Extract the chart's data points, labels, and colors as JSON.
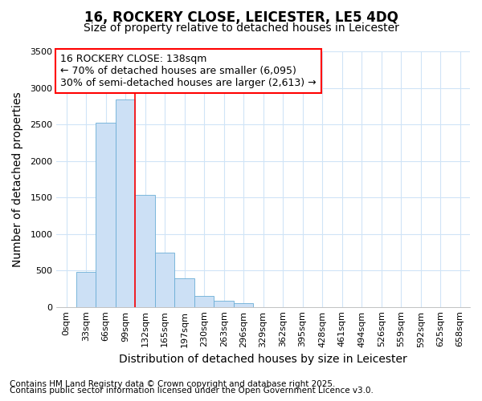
{
  "title_line1": "16, ROCKERY CLOSE, LEICESTER, LE5 4DQ",
  "title_line2": "Size of property relative to detached houses in Leicester",
  "xlabel": "Distribution of detached houses by size in Leicester",
  "ylabel": "Number of detached properties",
  "bar_labels": [
    "0sqm",
    "33sqm",
    "66sqm",
    "99sqm",
    "132sqm",
    "165sqm",
    "197sqm",
    "230sqm",
    "263sqm",
    "296sqm",
    "329sqm",
    "362sqm",
    "395sqm",
    "428sqm",
    "461sqm",
    "494sqm",
    "526sqm",
    "559sqm",
    "592sqm",
    "625sqm",
    "658sqm"
  ],
  "bar_heights": [
    0,
    480,
    2520,
    2840,
    1530,
    740,
    390,
    155,
    80,
    55,
    0,
    0,
    0,
    0,
    0,
    0,
    0,
    0,
    0,
    0,
    0
  ],
  "bar_color": "#cce0f5",
  "bar_edge_color": "#6baed6",
  "ylim": [
    0,
    3500
  ],
  "yticks": [
    0,
    500,
    1000,
    1500,
    2000,
    2500,
    3000,
    3500
  ],
  "red_line_x": 4.0,
  "annotation_line1": "16 ROCKERY CLOSE: 138sqm",
  "annotation_line2": "← 70% of detached houses are smaller (6,095)",
  "annotation_line3": "30% of semi-detached houses are larger (2,613) →",
  "footnote1": "Contains HM Land Registry data © Crown copyright and database right 2025.",
  "footnote2": "Contains public sector information licensed under the Open Government Licence v3.0.",
  "bg_color": "#ffffff",
  "grid_color": "#d0e4f7",
  "title_fontsize": 12,
  "subtitle_fontsize": 10,
  "axis_label_fontsize": 10,
  "tick_fontsize": 8,
  "annotation_fontsize": 9,
  "footnote_fontsize": 7.5
}
